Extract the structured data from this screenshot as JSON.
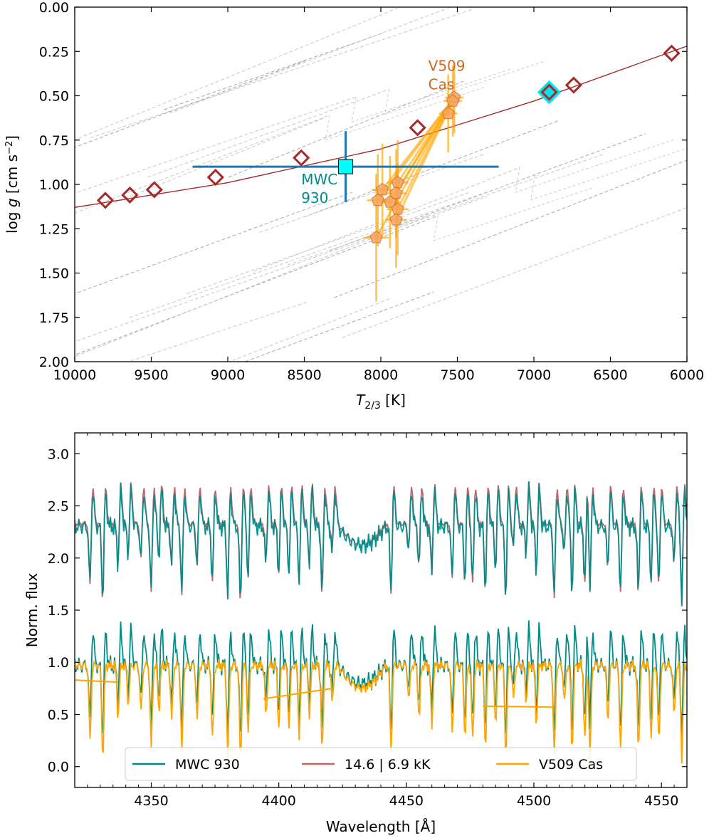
{
  "chart_data": [
    {
      "type": "scatter",
      "xlabel": "T2/3 [K]",
      "ylabel": "log g [cm s−2]",
      "xlim": [
        10000,
        6000
      ],
      "ylim": [
        2.0,
        0.0
      ],
      "x_ticks": [
        "10000",
        "9500",
        "9000",
        "8500",
        "8000",
        "7500",
        "7000",
        "6500",
        "6000"
      ],
      "x_tick_values": [
        10000,
        9500,
        9000,
        8500,
        8000,
        7500,
        7000,
        6500,
        6000
      ],
      "y_ticks": [
        "0.00",
        "0.25",
        "0.50",
        "0.75",
        "1.00",
        "1.25",
        "1.50",
        "1.75",
        "2.00"
      ],
      "y_tick_values": [
        0.0,
        0.25,
        0.5,
        0.75,
        1.0,
        1.25,
        1.5,
        1.75,
        2.0
      ],
      "annotations": [
        {
          "text_lines": [
            "V509",
            "Cas"
          ],
          "x": 7690,
          "y": 0.36,
          "color": "#d2691e"
        },
        {
          "text_lines": [
            "MWC",
            "930"
          ],
          "x": 8520,
          "y": 1.0,
          "color": "#008b8b"
        }
      ],
      "series": [
        {
          "kind": "line",
          "color": "#a52a2a",
          "points": [
            [
              10000,
              1.13
            ],
            [
              9000,
              0.99
            ],
            [
              8000,
              0.8
            ],
            [
              7000,
              0.53
            ],
            [
              6000,
              0.22
            ]
          ]
        },
        {
          "kind": "diamond-markers",
          "color": "#a52a2a",
          "points": [
            [
              9800,
              1.09
            ],
            [
              9640,
              1.06
            ],
            [
              9480,
              1.03
            ],
            [
              9080,
              0.96
            ],
            [
              8520,
              0.85
            ],
            [
              7760,
              0.68
            ],
            [
              6900,
              0.48
            ],
            [
              6740,
              0.44
            ],
            [
              6100,
              0.26
            ]
          ]
        },
        {
          "kind": "highlight-diamond",
          "color": "#00e5ee",
          "points": [
            [
              6900,
              0.48
            ]
          ]
        },
        {
          "kind": "errorbar-square",
          "color": "#1f77b4",
          "fill": "#00ffff",
          "x": 8230,
          "y": 0.9,
          "x_err": [
            1000,
            1000
          ],
          "y_err": [
            0.2,
            0.2
          ]
        },
        {
          "kind": "pentagon-track",
          "color": "#ffa500",
          "points": [
            {
              "x": 7520,
              "y": 0.51,
              "xe": 60,
              "ye": 0.2
            },
            {
              "x": 7530,
              "y": 0.53,
              "xe": 60,
              "ye": 0.2
            },
            {
              "x": 7560,
              "y": 0.6,
              "xe": 60,
              "ye": 0.22
            },
            {
              "x": 7890,
              "y": 0.99,
              "xe": 70,
              "ye": 0.24
            },
            {
              "x": 7990,
              "y": 1.03,
              "xe": 70,
              "ye": 0.26
            },
            {
              "x": 7900,
              "y": 1.05,
              "xe": 70,
              "ye": 0.25
            },
            {
              "x": 8020,
              "y": 1.09,
              "xe": 70,
              "ye": 0.26
            },
            {
              "x": 7940,
              "y": 1.1,
              "xe": 70,
              "ye": 0.26
            },
            {
              "x": 7890,
              "y": 1.14,
              "xe": 70,
              "ye": 0.26
            },
            {
              "x": 7900,
              "y": 1.2,
              "xe": 70,
              "ye": 0.27
            },
            {
              "x": 8030,
              "y": 1.3,
              "xe": 80,
              "ye": 0.36
            }
          ]
        }
      ]
    },
    {
      "type": "line",
      "xlabel": "Wavelength [Å]",
      "ylabel": "Norm. flux",
      "xlim": [
        4320,
        4560
      ],
      "ylim": [
        -0.2,
        3.2
      ],
      "x_ticks": [
        "4350",
        "4400",
        "4450",
        "4500",
        "4550"
      ],
      "x_tick_values": [
        4350,
        4400,
        4450,
        4500,
        4550
      ],
      "y_ticks": [
        "0.0",
        "0.5",
        "1.0",
        "1.5",
        "2.0",
        "2.5",
        "3.0"
      ],
      "y_tick_values": [
        0.0,
        0.5,
        1.0,
        1.5,
        2.0,
        2.5,
        3.0
      ],
      "legend": {
        "placement": "bottom-center",
        "entries": [
          {
            "label": "MWC 930",
            "color": "#008b8b"
          },
          {
            "label": "14.6 | 6.9 kK",
            "color": "#bc6868"
          },
          {
            "label": "V509 Cas",
            "color": "#ffa500"
          }
        ]
      },
      "series": [
        {
          "name": "MWC 930",
          "color": "#008b8b",
          "offset_continuum": 2.3
        },
        {
          "name": "14.6 | 6.9 kK",
          "color": "#bc6868",
          "offset_continuum": 2.33
        },
        {
          "name": "MWC 930",
          "color": "#008b8b",
          "offset_continuum": 0.97
        },
        {
          "name": "V509 Cas",
          "color": "#ffa500",
          "offset_continuum": 0.97
        }
      ]
    }
  ]
}
